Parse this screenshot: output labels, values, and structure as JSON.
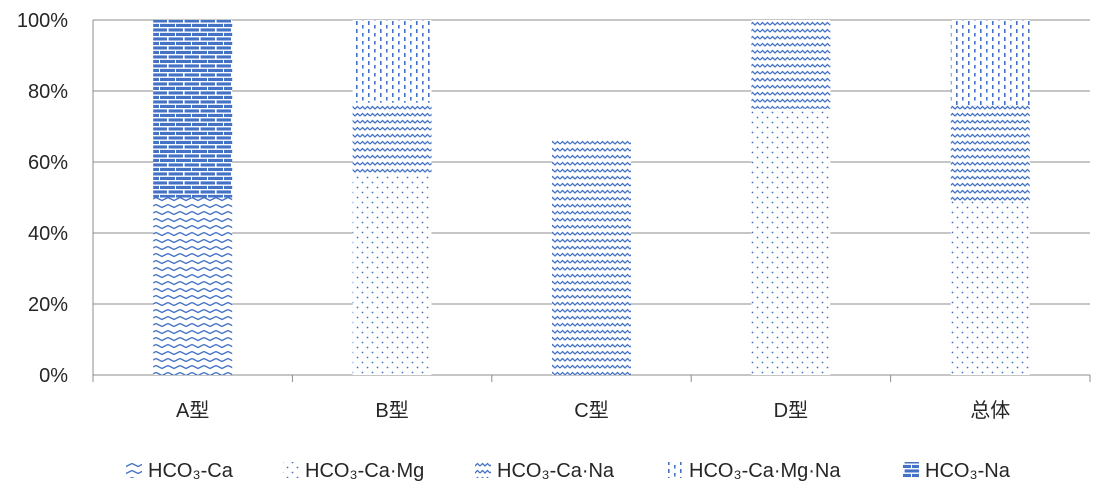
{
  "chart_data": {
    "type": "bar",
    "stacked": true,
    "percent_stacked": true,
    "categories": [
      "A型",
      "B型",
      "C型",
      "D型",
      "总体"
    ],
    "y_ticks": [
      "0%",
      "20%",
      "40%",
      "60%",
      "80%",
      "100%"
    ],
    "ylim": [
      0,
      100
    ],
    "grid": true,
    "legend_position": "bottom",
    "series": [
      {
        "name": "HCO₃-Ca",
        "pattern": "double-chevron",
        "values": [
          50,
          0,
          0,
          0,
          0
        ]
      },
      {
        "name": "HCO₃-Ca·Mg",
        "pattern": "dots",
        "values": [
          0,
          56.7,
          0,
          75,
          49
        ]
      },
      {
        "name": "HCO₃-Ca·Na",
        "pattern": "wave",
        "values": [
          0,
          20,
          66.7,
          25,
          27
        ]
      },
      {
        "name": "HCO₃-Ca·Mg·Na",
        "pattern": "dashes",
        "values": [
          0,
          23.3,
          0,
          0,
          24
        ]
      },
      {
        "name": "HCO₃-Na",
        "pattern": "brick",
        "values": [
          50,
          0,
          0,
          0,
          0
        ]
      }
    ],
    "extra_segments_note": "",
    "color": "#4472c4"
  }
}
